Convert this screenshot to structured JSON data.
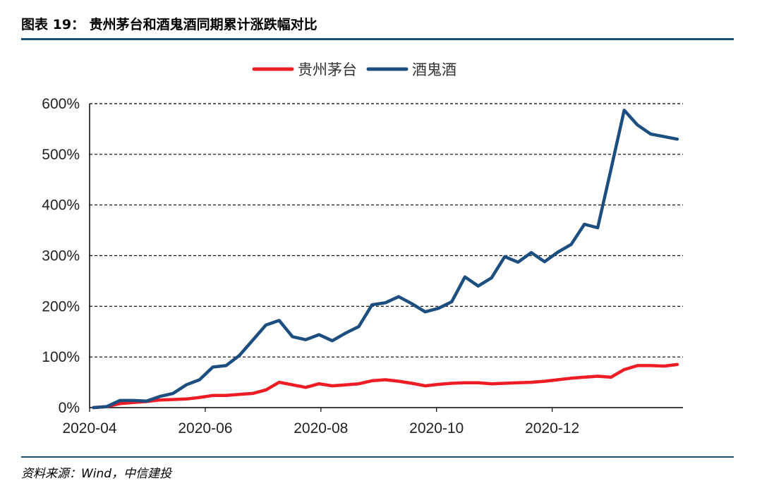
{
  "header": {
    "title": "图表 19： 贵州茅台和酒鬼酒同期累计涨跌幅对比"
  },
  "footer": {
    "source": "资料来源：Wind，中信建投"
  },
  "colors": {
    "accent_rule": "#1a4f78"
  },
  "chart_data": {
    "type": "line",
    "title": "",
    "xlabel": "",
    "ylabel": "",
    "ylim": [
      0,
      600
    ],
    "y_unit": "%",
    "yticks": [
      0,
      100,
      200,
      300,
      400,
      500,
      600
    ],
    "ytick_labels": [
      "0%",
      "100%",
      "200%",
      "300%",
      "400%",
      "500%",
      "600%"
    ],
    "x": [
      "2020-04-03",
      "2020-04-10",
      "2020-04-17",
      "2020-04-24",
      "2020-05-01",
      "2020-05-08",
      "2020-05-15",
      "2020-05-22",
      "2020-05-29",
      "2020-06-05",
      "2020-06-12",
      "2020-06-19",
      "2020-06-26",
      "2020-07-03",
      "2020-07-10",
      "2020-07-17",
      "2020-07-24",
      "2020-07-31",
      "2020-08-07",
      "2020-08-14",
      "2020-08-21",
      "2020-08-28",
      "2020-09-04",
      "2020-09-11",
      "2020-09-18",
      "2020-09-25",
      "2020-10-02",
      "2020-10-09",
      "2020-10-16",
      "2020-10-23",
      "2020-10-30",
      "2020-11-06",
      "2020-11-13",
      "2020-11-20",
      "2020-11-27",
      "2020-12-04",
      "2020-12-11",
      "2020-12-18",
      "2020-12-25",
      "2021-01-01",
      "2021-01-08",
      "2021-01-15",
      "2021-01-22",
      "2021-01-29",
      "2021-02-05"
    ],
    "xlim": [
      "2020-04-01",
      "2021-02-08"
    ],
    "xticks": [
      "2020-04-01",
      "2020-06-01",
      "2020-08-01",
      "2020-10-01",
      "2020-12-01"
    ],
    "xtick_labels": [
      "2020-04",
      "2020-06",
      "2020-08",
      "2020-10",
      "2020-12"
    ],
    "grid": true,
    "grid_style": "dashed-horizontal",
    "legend_position": "top-center",
    "series": [
      {
        "name": "贵州茅台",
        "color": "#ee1c25",
        "values": [
          0,
          2,
          8,
          10,
          12,
          15,
          16,
          17,
          20,
          24,
          24,
          26,
          28,
          35,
          50,
          45,
          40,
          47,
          43,
          45,
          47,
          53,
          55,
          52,
          48,
          43,
          46,
          48,
          49,
          49,
          47,
          48,
          49,
          50,
          52,
          55,
          58,
          60,
          62,
          60,
          75,
          83,
          83,
          82,
          85
        ]
      },
      {
        "name": "酒鬼酒",
        "color": "#1c4e80",
        "values": [
          0,
          2,
          14,
          14,
          13,
          22,
          28,
          45,
          55,
          80,
          83,
          103,
          133,
          163,
          172,
          140,
          134,
          144,
          132,
          147,
          160,
          203,
          207,
          219,
          205,
          189,
          196,
          209,
          258,
          240,
          256,
          298,
          287,
          306,
          288,
          307,
          322,
          362,
          355,
          470,
          587,
          558,
          540,
          535,
          530
        ]
      }
    ]
  }
}
